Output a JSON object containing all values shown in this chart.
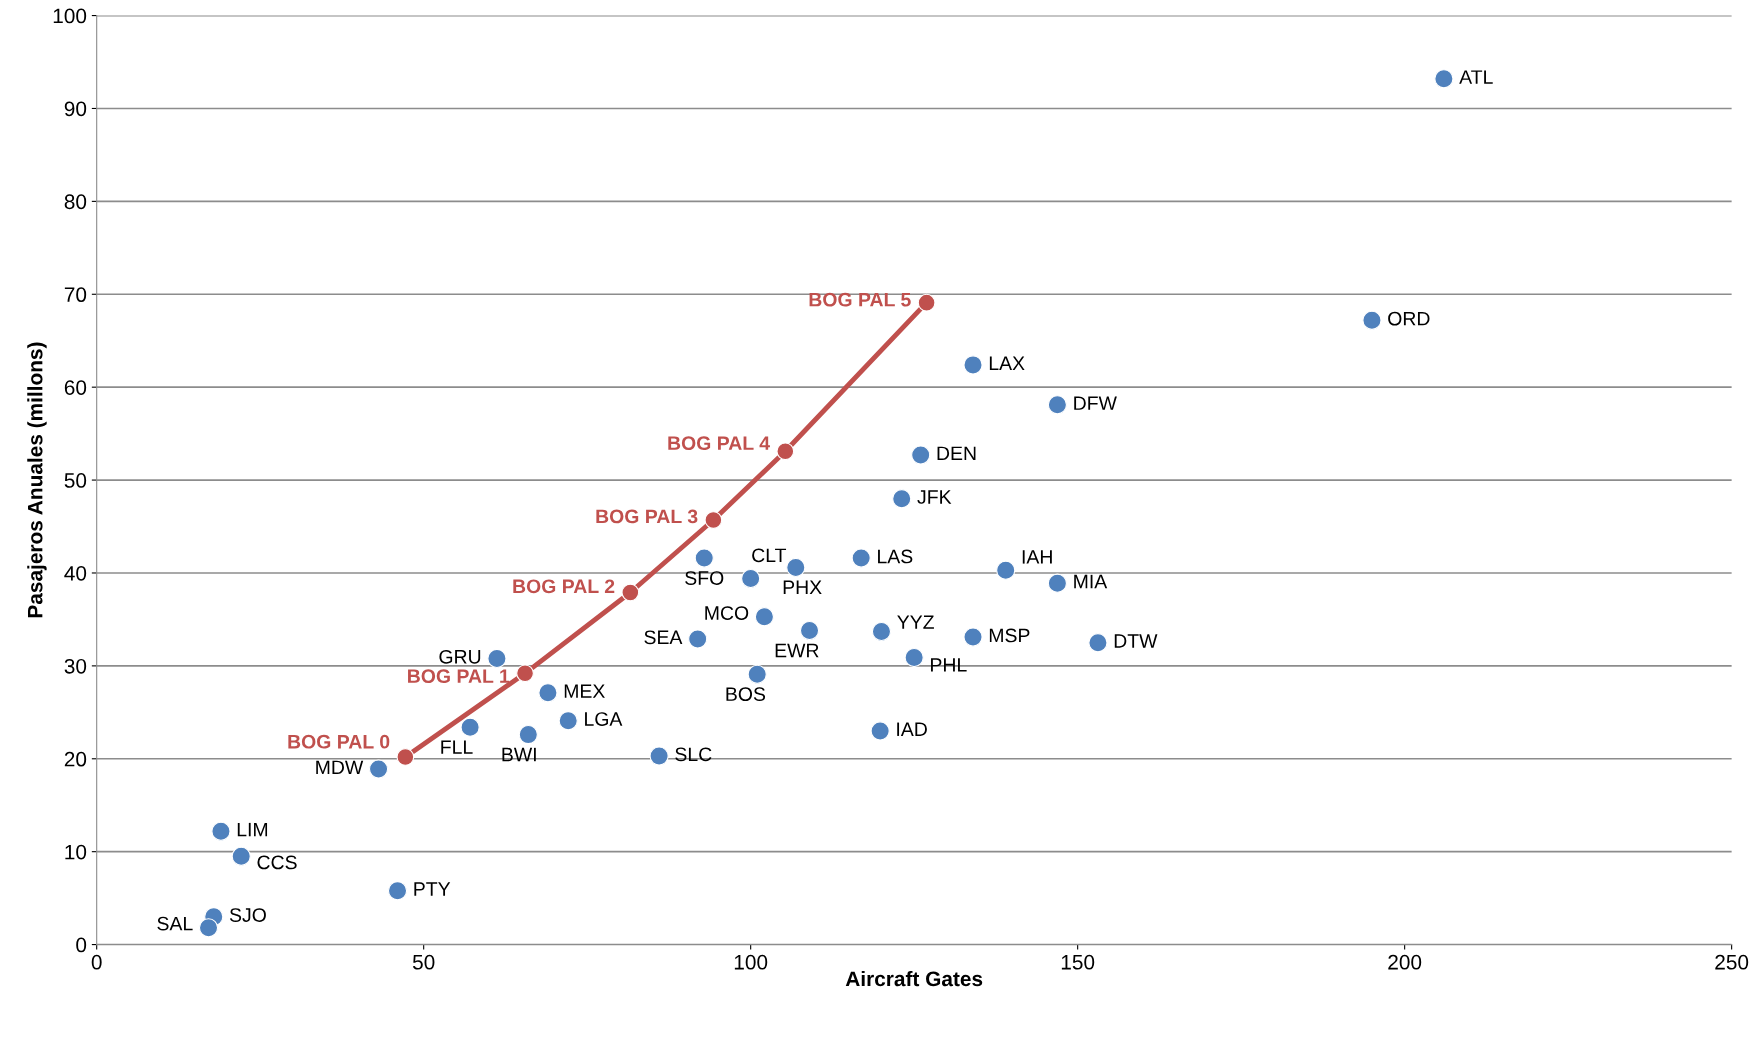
{
  "chart_data": {
    "type": "scatter",
    "xlabel": "Aircraft Gates",
    "ylabel": "Pasajeros Anuales (millons)",
    "xlim": [
      0,
      250
    ],
    "xticks": [
      0,
      50,
      100,
      150,
      200,
      250
    ],
    "ylim": [
      0,
      100
    ],
    "yticks": [
      0,
      10,
      20,
      30,
      40,
      50,
      60,
      70,
      80,
      90,
      100
    ],
    "grid": "y",
    "legend": false,
    "series": [
      {
        "color": "#4f81bd",
        "marker": "circle",
        "x": [
          206.0,
          195.0,
          134.0,
          146.9,
          126.0,
          123.1,
          116.9,
          139.0,
          146.9,
          106.9,
          92.9,
          100.0,
          102.1,
          109.0,
          91.9,
          120.0,
          134.0,
          153.1,
          125.0,
          101.0,
          61.2,
          69.0,
          72.1,
          57.1,
          66.0,
          119.8,
          86.0,
          43.1,
          19.0,
          22.1,
          46.0,
          17.9,
          17.1
        ],
        "values": [
          93.2,
          67.2,
          62.4,
          58.1,
          52.7,
          48.0,
          41.6,
          40.3,
          38.9,
          40.6,
          41.6,
          39.4,
          35.3,
          33.8,
          32.9,
          33.7,
          33.1,
          32.5,
          30.9,
          29.1,
          30.8,
          27.1,
          24.1,
          23.4,
          22.6,
          23.0,
          20.3,
          18.9,
          12.2,
          9.5,
          5.8,
          3.0,
          1.8
        ],
        "value_labels": [
          "ATL",
          "ORD",
          "LAX",
          "DFW",
          "DEN",
          "JFK",
          "LAS",
          "IAH",
          "MIA",
          "PHX",
          "SFO",
          "CLT",
          "MCO",
          "EWR",
          "SEA",
          "YYZ",
          "MSP",
          "DTW",
          "PHL",
          "BOS",
          "GRU",
          "MEX",
          "LGA",
          "FLL",
          "BWI",
          "IAD",
          "SLC",
          "MDW",
          "LIM",
          "CCS",
          "PTY",
          "SJO",
          "SAL"
        ]
      },
      {
        "type": "line",
        "color": "#c0504d",
        "marker": "circle",
        "line_style": "solid",
        "x": [
          47.2,
          65.5,
          81.6,
          94.3,
          105.3,
          126.9
        ],
        "values": [
          20.2,
          29.2,
          37.9,
          45.7,
          53.1,
          69.1
        ],
        "value_labels": [
          "BOG PAL 0",
          "BOG PAL 1",
          "BOG PAL 2",
          "BOG PAL 3",
          "BOG PAL 4",
          "BOG PAL 5"
        ]
      }
    ]
  }
}
